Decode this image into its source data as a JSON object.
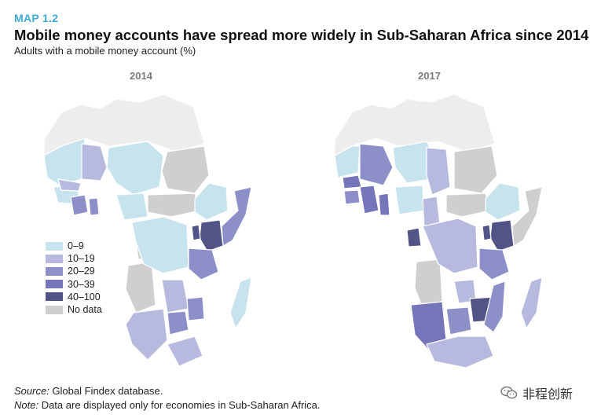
{
  "header": {
    "label": "MAP 1.2",
    "title": "Mobile money accounts have spread more widely in Sub-Saharan Africa since 2014",
    "subtitle": "Adults with a mobile money account (%)"
  },
  "panels": [
    {
      "year": "2014"
    },
    {
      "year": "2017"
    }
  ],
  "legend": {
    "items": [
      {
        "label": "0–9",
        "color": "#c7e4ee"
      },
      {
        "label": "10–19",
        "color": "#b7b9de"
      },
      {
        "label": "20–29",
        "color": "#8d8fc9"
      },
      {
        "label": "30–39",
        "color": "#7576ba"
      },
      {
        "label": "40–100",
        "color": "#525387"
      },
      {
        "label": "No data",
        "color": "#cfcfd0"
      }
    ]
  },
  "colors": {
    "non_ssa": "#ededee",
    "border": "#ffffff",
    "accent": "#3fa9d5"
  },
  "footnotes": {
    "source_lead": "Source:",
    "source_text": " Global Findex database.",
    "note_lead": "Note:",
    "note_text": " Data are displayed only for economies in Sub-Saharan Africa."
  },
  "watermark": {
    "text": "非程创新",
    "icon": "wechat-icon"
  }
}
